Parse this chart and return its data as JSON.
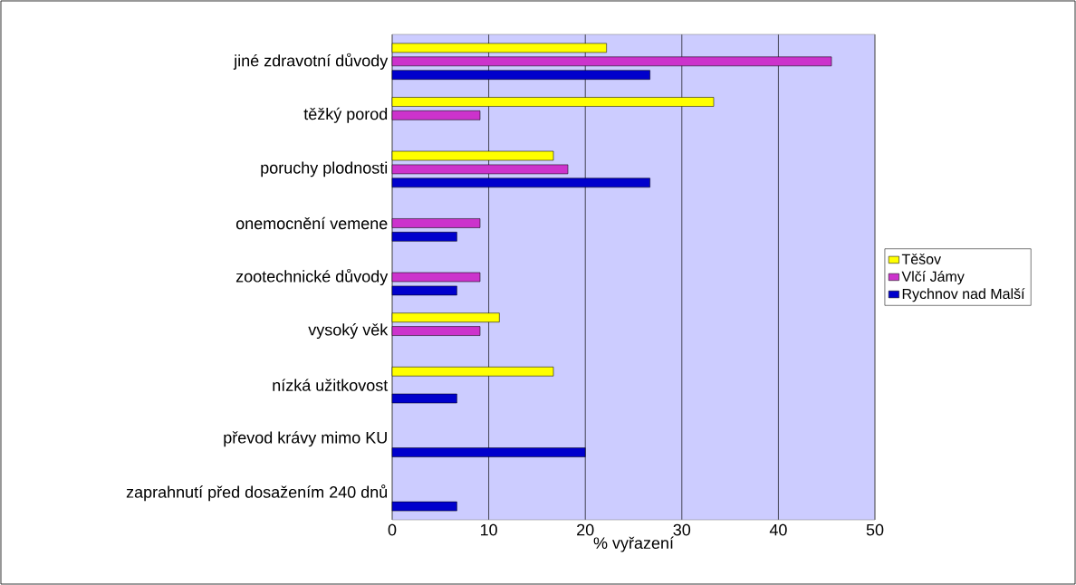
{
  "chart_data": {
    "type": "bar",
    "orientation": "horizontal",
    "xlabel": "%  vyřazení",
    "categories": [
      "jiné zdravotní důvody",
      "těžký porod",
      "poruchy plodnosti",
      "onemocnění vemene",
      "zootechnické důvody",
      "vysoký věk",
      "nízká užitkovost",
      "převod krávy mimo KU",
      "zaprahnutí před dosažením 240 dnů"
    ],
    "series": [
      {
        "name": "Rychnov nad Malší",
        "color": "#0000cc",
        "values": [
          26.7,
          null,
          26.7,
          6.7,
          6.7,
          null,
          6.7,
          20,
          6.7
        ]
      },
      {
        "name": "Vlčí Jámy",
        "color": "#cc33cc",
        "values": [
          45.5,
          9.1,
          18.2,
          9.1,
          9.1,
          9.1,
          null,
          null,
          null
        ]
      },
      {
        "name": "Těšov",
        "color": "#ffff00",
        "values": [
          22.2,
          33.3,
          16.7,
          null,
          null,
          11.1,
          16.7,
          null,
          null
        ]
      }
    ],
    "xlim": [
      0,
      50
    ],
    "xticks": [
      0,
      10,
      20,
      30,
      40,
      50
    ],
    "grid": "x",
    "legend": "right"
  }
}
